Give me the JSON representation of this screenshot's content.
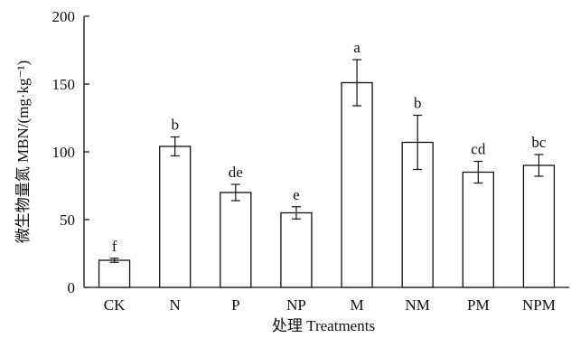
{
  "chart_data": {
    "type": "bar",
    "categories": [
      "CK",
      "N",
      "P",
      "NP",
      "M",
      "NM",
      "PM",
      "NPM"
    ],
    "values": [
      20,
      104,
      70,
      55,
      151,
      107,
      85,
      90
    ],
    "errors": [
      1.5,
      7,
      6,
      4.5,
      17,
      20,
      8,
      8
    ],
    "significance_letters": [
      "f",
      "b",
      "de",
      "e",
      "a",
      "b",
      "cd",
      "bc"
    ],
    "ylim": [
      0,
      200
    ],
    "yticks": [
      0,
      50,
      100,
      150,
      200
    ],
    "ylabel": "微生物量氮 MBN/(mg·kg⁻¹)",
    "xlabel": "处理 Treatments",
    "grid": false,
    "legend": "none",
    "bar_fill": "#ffffff",
    "bar_stroke": "#111111"
  }
}
